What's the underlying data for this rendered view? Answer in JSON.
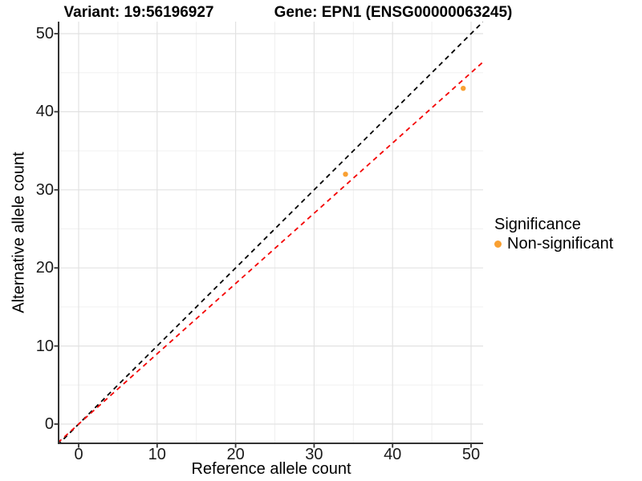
{
  "chart_data": {
    "type": "scatter",
    "titles": {
      "left": "Variant: 19:56196927",
      "right": "Gene: EPN1 (ENSG00000063245)"
    },
    "xlabel": "Reference allele count",
    "ylabel": "Alternative allele count",
    "xlim": [
      -2.5,
      51.5
    ],
    "ylim": [
      -2.5,
      51.5
    ],
    "x_ticks": [
      0,
      10,
      20,
      30,
      40,
      50
    ],
    "y_ticks": [
      0,
      10,
      20,
      30,
      40,
      50
    ],
    "x_minor_ticks": [
      5,
      15,
      25,
      35,
      45
    ],
    "y_minor_ticks": [
      5,
      15,
      25,
      35,
      45
    ],
    "grid": true,
    "legend": {
      "title": "Significance",
      "position": "right",
      "items": [
        {
          "label": "Non-significant",
          "color": "#F9A032"
        }
      ]
    },
    "series": [
      {
        "name": "Non-significant",
        "color": "#F9A032",
        "points": [
          {
            "x": 34,
            "y": 32
          },
          {
            "x": 49,
            "y": 43
          }
        ]
      }
    ],
    "reference_lines": [
      {
        "name": "identity",
        "slope": 1,
        "intercept": 0,
        "linetype": "dashed",
        "color": "#000000"
      },
      {
        "name": "fitted-allelic-ratio",
        "slope": 0.9,
        "intercept": 0,
        "linetype": "dashed",
        "color": "#F40000"
      }
    ],
    "colors": {
      "grid_major": "#E2E2E2",
      "grid_minor": "#F0F0F0",
      "axis_line": "#333333",
      "tick_text": "#1A1A1A"
    }
  }
}
